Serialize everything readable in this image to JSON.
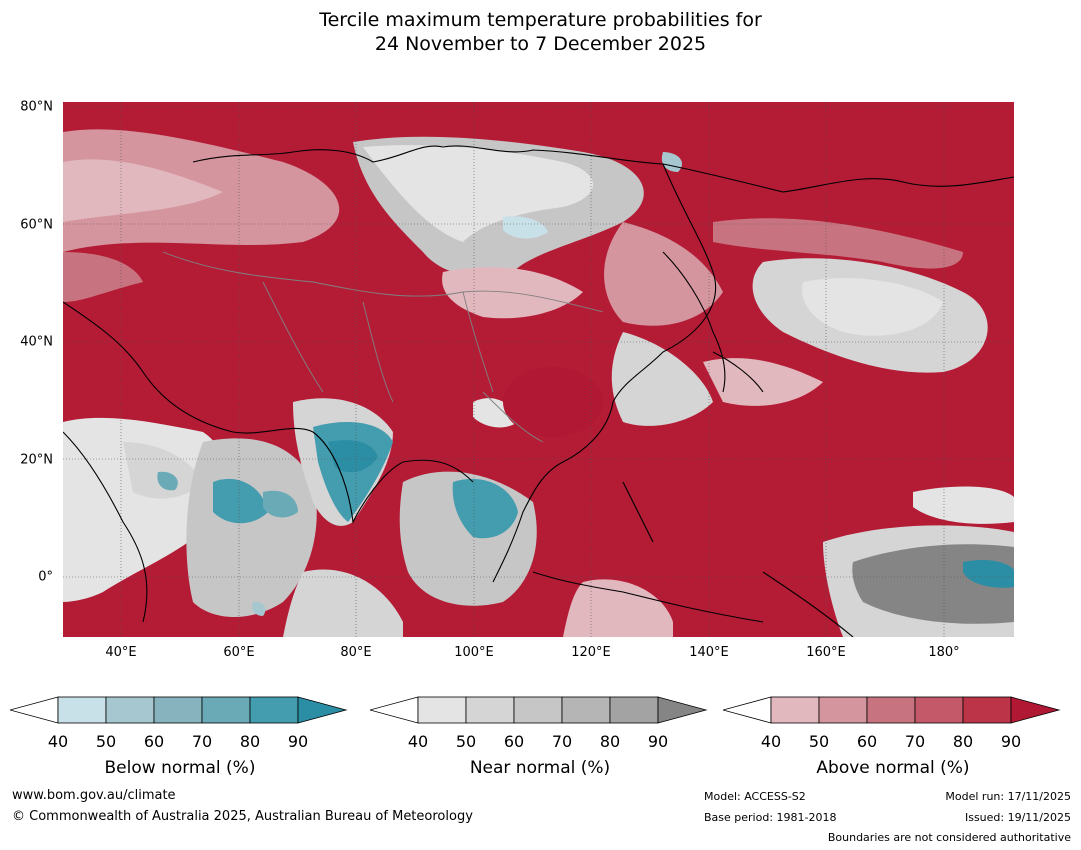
{
  "title": {
    "line1": "Tercile maximum temperature probabilities for",
    "line2": "24 November to 7 December 2025"
  },
  "map": {
    "lat_labels": [
      "80°N",
      "60°N",
      "40°N",
      "20°N",
      "0°"
    ],
    "lon_labels": [
      "40°E",
      "60°E",
      "80°E",
      "100°E",
      "120°E",
      "140°E",
      "160°E",
      "180°"
    ],
    "colors": {
      "above_background": "#b41c36",
      "ocean_pacific": "#b01834",
      "coast": "#000000",
      "border": "#808080"
    }
  },
  "colorbars": [
    {
      "label": "Below normal (%)",
      "ticks": [
        "40",
        "50",
        "60",
        "70",
        "80",
        "90"
      ],
      "colors": [
        "#ffffff",
        "#c8e0e7",
        "#a6c7cf",
        "#87b3be",
        "#6aaab6",
        "#449caf",
        "#2b8ea4"
      ]
    },
    {
      "label": "Near normal (%)",
      "ticks": [
        "40",
        "50",
        "60",
        "70",
        "80",
        "90"
      ],
      "colors": [
        "#ffffff",
        "#e4e4e4",
        "#d5d5d5",
        "#c6c6c6",
        "#b5b5b5",
        "#a3a3a3",
        "#858585"
      ]
    },
    {
      "label": "Above normal (%)",
      "ticks": [
        "40",
        "50",
        "60",
        "70",
        "80",
        "90"
      ],
      "colors": [
        "#ffffff",
        "#e2b8bf",
        "#d4959e",
        "#c87480",
        "#c45a69",
        "#bb3448",
        "#b01834"
      ]
    }
  ],
  "footer": {
    "website": "www.bom.gov.au/climate",
    "copyright": "© Commonwealth of Australia 2025, Australian Bureau of Meteorology",
    "model": "Model: ACCESS-S2",
    "base_period": "Base period: 1981-2018",
    "model_run": "Model run: 17/11/2025",
    "issued": "Issued: 19/11/2025",
    "boundaries": "Boundaries are not considered authoritative"
  }
}
